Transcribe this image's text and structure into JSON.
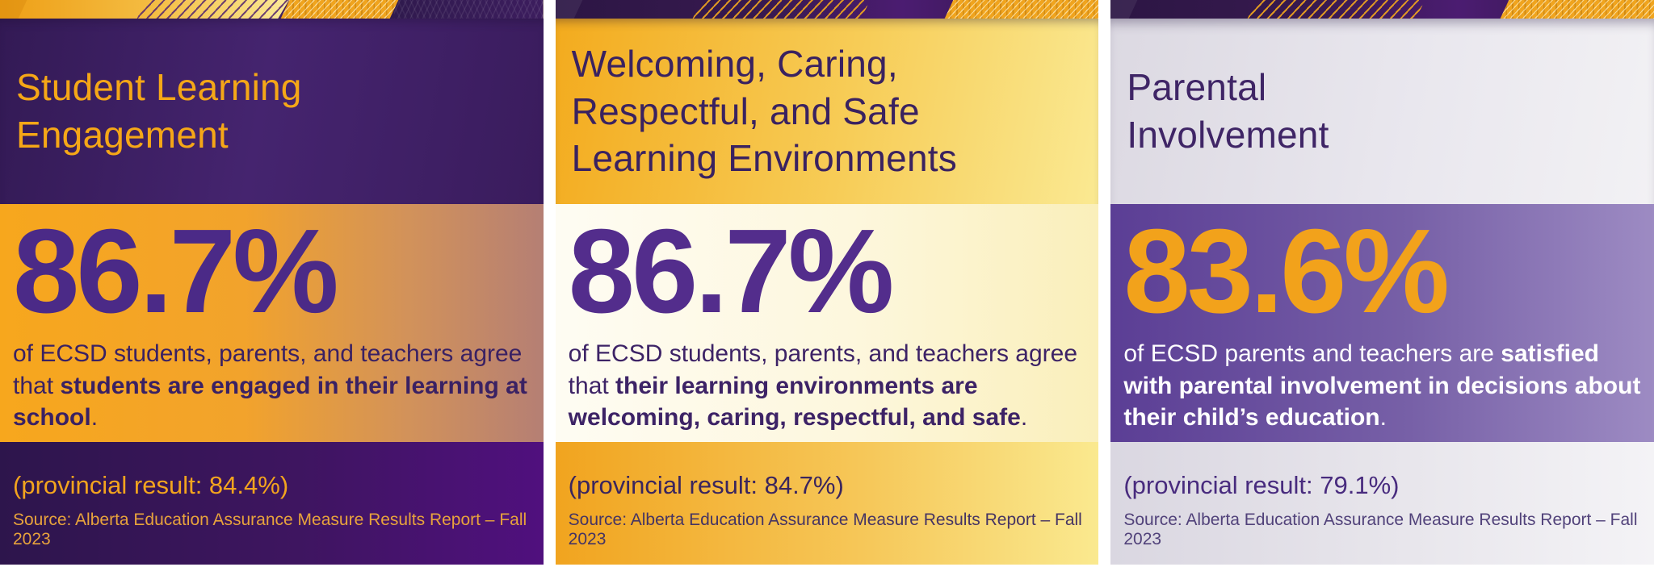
{
  "page": {
    "background": "#ffffff"
  },
  "colors": {
    "gold": "#F2A51E",
    "pale_gold": "#FBECA0",
    "deep_purple": "#331A55",
    "royal_purple": "#53308C",
    "mid_purple": "#7760A7",
    "cream": "#FDF7DD",
    "lavender_gray": "#E9E7EE",
    "white": "#FFFFFF"
  },
  "chart_data": {
    "type": "table",
    "categories": [
      "Student Learning Engagement",
      "Welcoming, Caring, Respectful, and Safe Learning Environments",
      "Parental Involvement"
    ],
    "series": [
      {
        "name": "ECSD result",
        "values": [
          86.7,
          86.7,
          83.6
        ]
      },
      {
        "name": "Provincial result",
        "values": [
          84.4,
          84.7,
          79.1
        ]
      }
    ],
    "unit": "%",
    "source": "Source: Alberta Education Assurance Measure Results Report – Fall 2023"
  },
  "panels": [
    {
      "id": "student-learning-engagement",
      "title": "Student Learning\nEngagement",
      "stat_value": "86.7%",
      "body_lead": "of ECSD students, parents, and teachers agree that ",
      "body_bold": "students are engaged in their learning at school",
      "body_end": ".",
      "provincial_result": "(provincial result: 84.4%)",
      "source": "Source: Alberta Education Assurance Measure Results Report – Fall 2023"
    },
    {
      "id": "welcoming-caring-respectful-safe",
      "title": "Welcoming, Caring,\nRespectful, and Safe\nLearning Environments",
      "stat_value": "86.7%",
      "body_lead": "of ECSD students, parents, and teachers agree that ",
      "body_bold": "their learning environments are welcoming, caring, respectful, and safe",
      "body_end": ".",
      "provincial_result": "(provincial result: 84.7%)",
      "source": "Source: Alberta Education Assurance Measure Results Report – Fall 2023"
    },
    {
      "id": "parental-involvement",
      "title": "Parental\nInvolvement",
      "stat_value": "83.6%",
      "body_lead": "of ECSD parents and teachers are ",
      "body_bold": "satisfied with parental involvement in decisions about their child’s education",
      "body_end": ".",
      "provincial_result": "(provincial result: 79.1%)",
      "source": "Source: Alberta Education Assurance Measure Results Report – Fall 2023"
    }
  ]
}
